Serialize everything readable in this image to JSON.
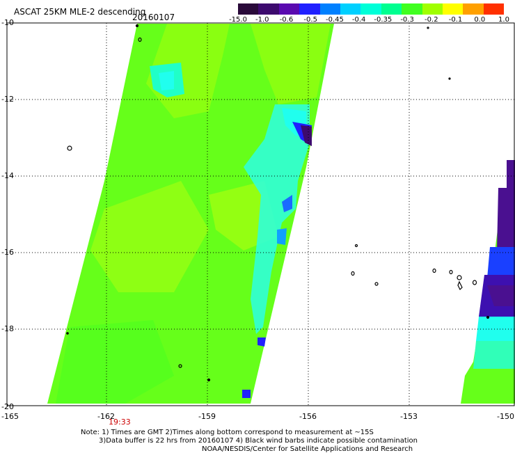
{
  "header": {
    "title": "ASCAT 25KM MLE-2 descending",
    "date": "20160107"
  },
  "colorbar": {
    "labels": [
      "-15.0",
      "-1.0",
      "-0.6",
      "-0.5",
      "-0.45",
      "-0.4",
      "-0.35",
      "-0.3",
      "-0.2",
      "-0.1",
      "0.0",
      "1.0"
    ],
    "colors": [
      "#2a0a3a",
      "#3d0a6e",
      "#5a0ab0",
      "#2020ff",
      "#0080ff",
      "#00d0ff",
      "#00ffd8",
      "#00ff90",
      "#40ff20",
      "#a0ff00",
      "#ffff00",
      "#ffa000",
      "#ff3000"
    ]
  },
  "axes": {
    "y_labels": [
      "-10",
      "-12",
      "-14",
      "-16",
      "-18",
      "-20"
    ],
    "x_labels": [
      "-165",
      "-162",
      "-159",
      "-156",
      "-153",
      "-150"
    ]
  },
  "time_label": "19:33",
  "notes": {
    "line1": "Note: 1) Times are GMT 2)Times along bottom correspond to measurement at ~15S",
    "line2": "3)Data buffer is 22 hrs from 20160107 4) Black wind barbs indicate possible contamination",
    "line3": "NOAA/NESDIS/Center for Satellite Applications and Research"
  },
  "colors": {
    "swath_green": "#66ff1a",
    "swath_lime": "#88ff10",
    "cyan": "#20ffee",
    "blue": "#1a40ff",
    "purple": "#4a1090",
    "time_red": "#cc0000"
  }
}
